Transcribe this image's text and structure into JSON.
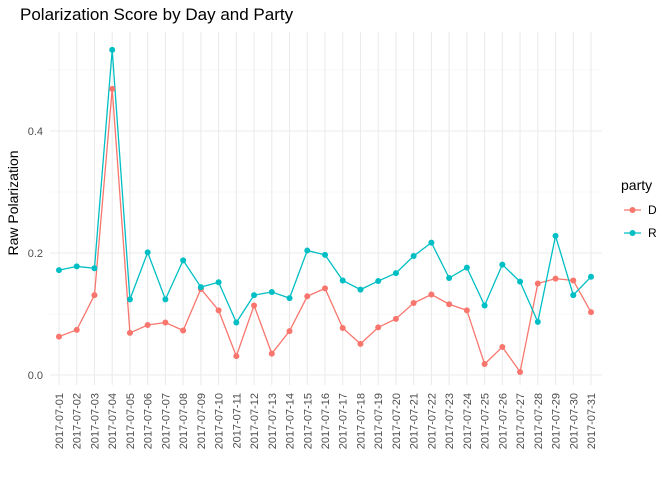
{
  "chart_data": {
    "type": "line",
    "title": "Polarization Score by Day and Party",
    "xlabel": "",
    "ylabel": "Raw Polarization",
    "ylim": [
      -0.02,
      0.56
    ],
    "yticks": [
      0.0,
      0.2,
      0.4
    ],
    "ytick_labels": [
      "0.0",
      "0.2",
      "0.4"
    ],
    "grid": true,
    "legend_position": "right",
    "legend_title": "party",
    "x": [
      "2017-07-01",
      "2017-07-02",
      "2017-07-03",
      "2017-07-04",
      "2017-07-05",
      "2017-07-06",
      "2017-07-07",
      "2017-07-08",
      "2017-07-09",
      "2017-07-10",
      "2017-07-11",
      "2017-07-12",
      "2017-07-13",
      "2017-07-14",
      "2017-07-15",
      "2017-07-16",
      "2017-07-17",
      "2017-07-18",
      "2017-07-19",
      "2017-07-20",
      "2017-07-21",
      "2017-07-22",
      "2017-07-23",
      "2017-07-24",
      "2017-07-25",
      "2017-07-26",
      "2017-07-27",
      "2017-07-28",
      "2017-07-29",
      "2017-07-30",
      "2017-07-31"
    ],
    "series": [
      {
        "name": "D",
        "color": "#F8766D",
        "values": [
          0.063,
          0.074,
          0.131,
          0.469,
          0.069,
          0.082,
          0.086,
          0.073,
          0.141,
          0.106,
          0.031,
          0.114,
          0.035,
          0.072,
          0.129,
          0.142,
          0.077,
          0.051,
          0.078,
          0.092,
          0.118,
          0.132,
          0.116,
          0.106,
          0.018,
          0.046,
          0.005,
          0.15,
          0.158,
          0.155,
          0.103
        ]
      },
      {
        "name": "R",
        "color": "#00BFC4",
        "values": [
          0.172,
          0.178,
          0.175,
          0.533,
          0.124,
          0.201,
          0.124,
          0.188,
          0.144,
          0.152,
          0.086,
          0.131,
          0.136,
          0.126,
          0.204,
          0.197,
          0.155,
          0.14,
          0.154,
          0.167,
          0.195,
          0.217,
          0.159,
          0.176,
          0.114,
          0.181,
          0.153,
          0.087,
          0.228,
          0.131,
          0.161
        ]
      }
    ]
  }
}
